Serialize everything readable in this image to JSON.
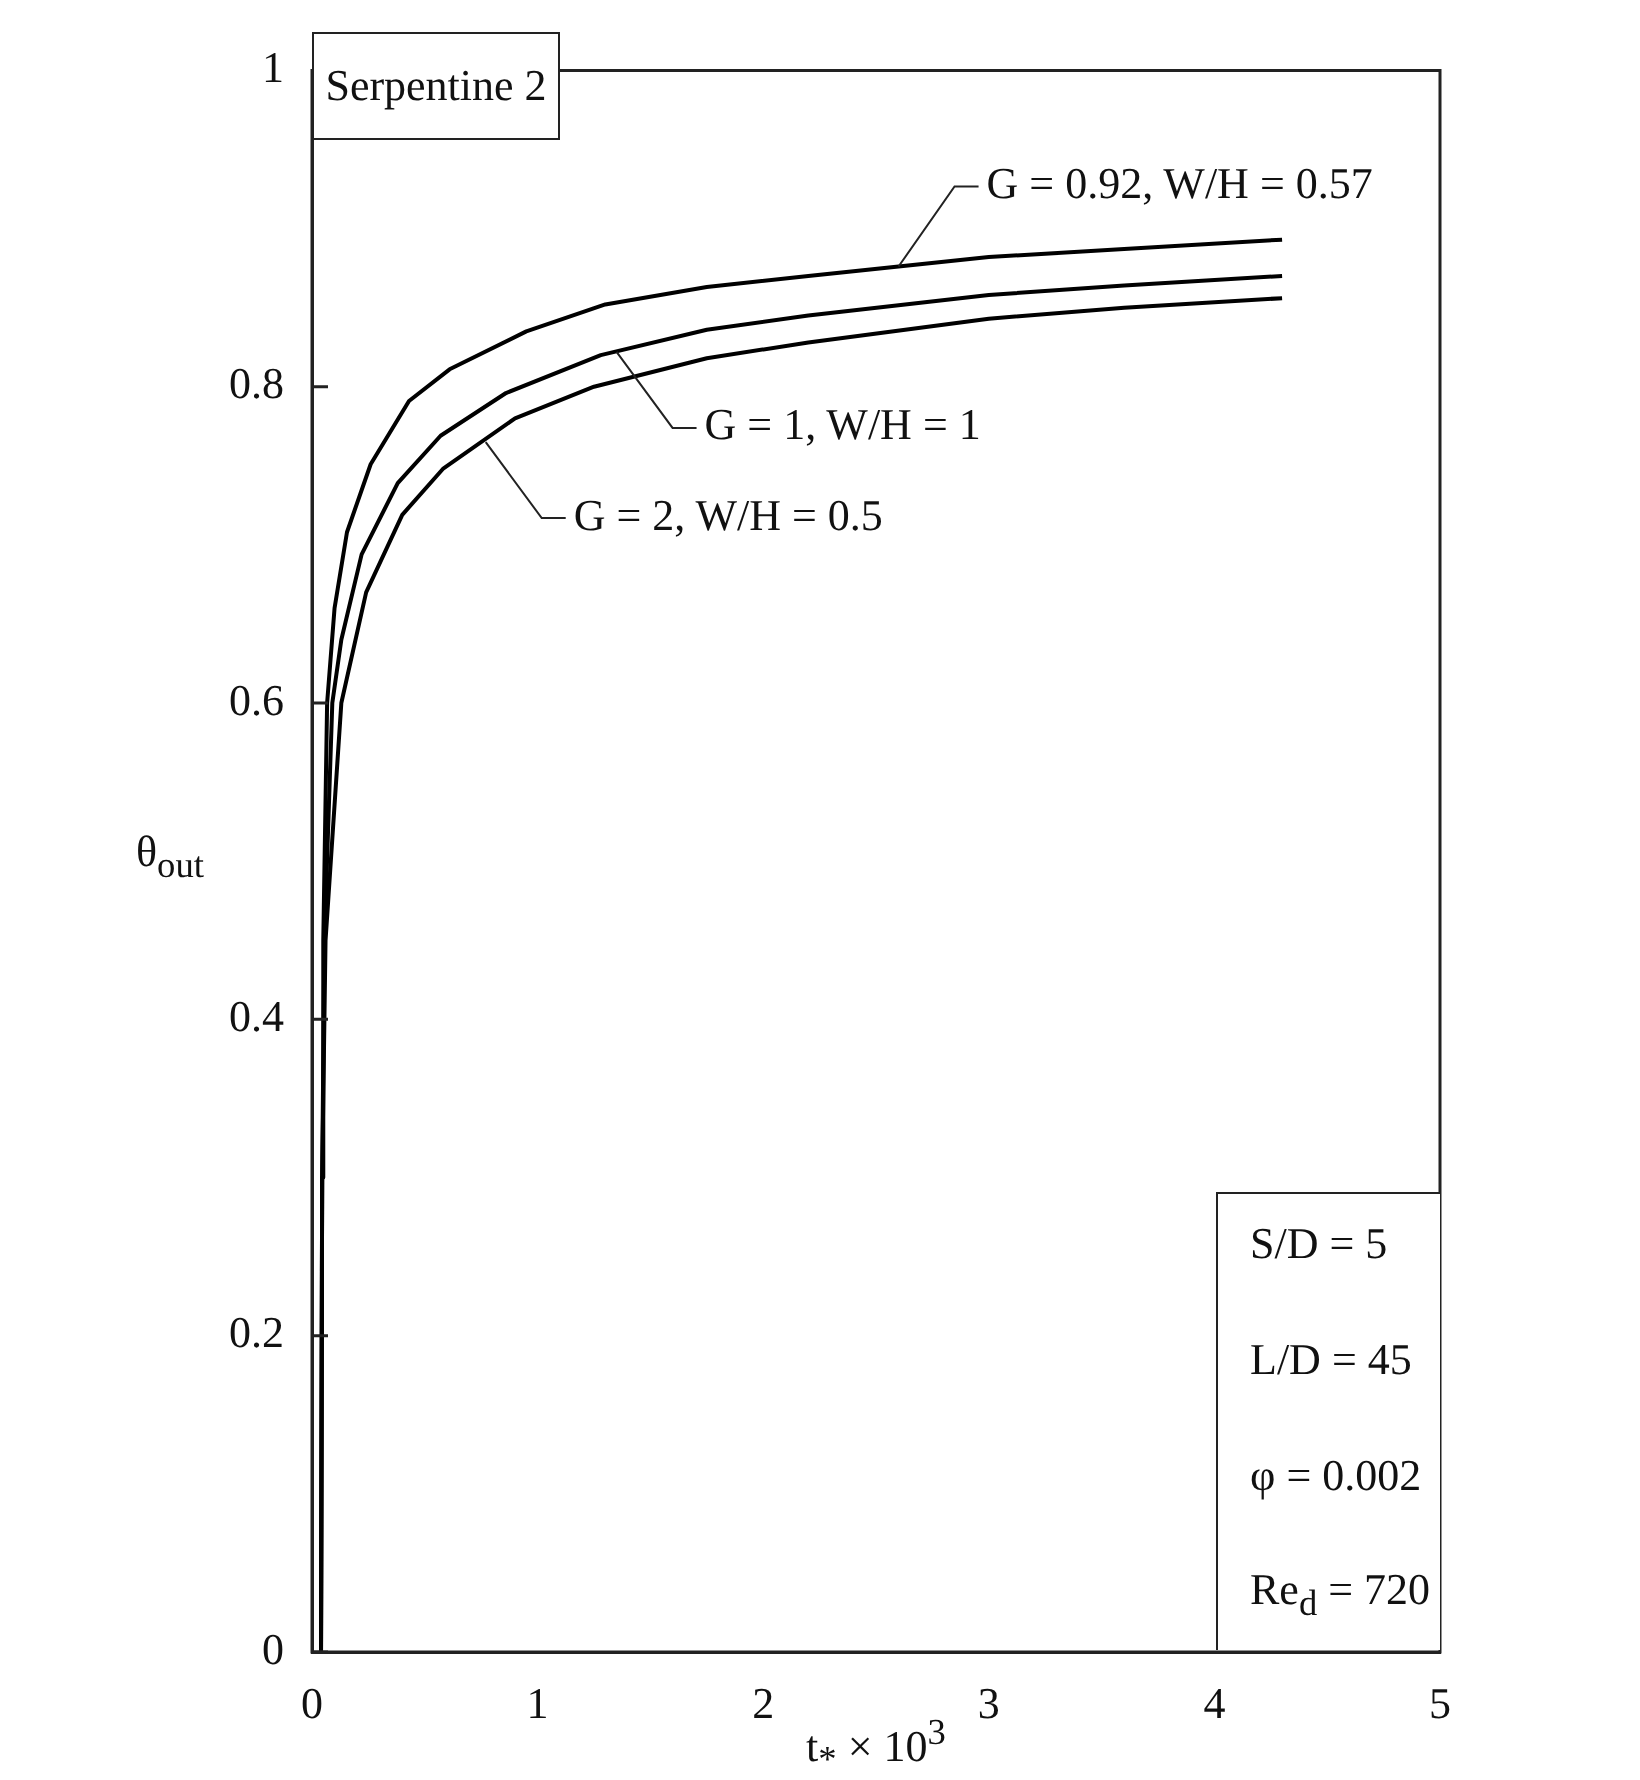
{
  "chart_data": {
    "type": "line",
    "title": "Serpentine 2",
    "xlabel": "t$_{*}$ × 10$^{3}$",
    "ylabel": "θ$_{out}$",
    "xlim": [
      0,
      5
    ],
    "xticks": [
      0,
      1,
      2,
      3,
      4,
      5
    ],
    "ylim": [
      0,
      1
    ],
    "yticks": [
      0,
      0.2,
      0.4,
      0.6,
      0.8,
      1
    ],
    "grid": false,
    "legend": false,
    "marker": "none",
    "line_style": "solid",
    "series": [
      {
        "color": "#000000",
        "x": [
          0.04,
          0.045,
          0.05,
          0.067,
          0.1,
          0.155,
          0.26,
          0.43,
          0.61,
          0.95,
          1.3,
          1.75,
          2.2,
          3.0,
          3.6,
          4.3
        ],
        "values": [
          0,
          0.3,
          0.45,
          0.6,
          0.66,
          0.708,
          0.751,
          0.791,
          0.811,
          0.835,
          0.852,
          0.863,
          0.87,
          0.882,
          0.887,
          0.893
        ]
      },
      {
        "color": "#000000",
        "x": [
          0.04,
          0.045,
          0.055,
          0.09,
          0.13,
          0.22,
          0.38,
          0.57,
          0.86,
          1.28,
          1.75,
          2.2,
          3.0,
          3.6,
          4.3
        ],
        "values": [
          0,
          0.3,
          0.45,
          0.6,
          0.64,
          0.694,
          0.739,
          0.769,
          0.796,
          0.82,
          0.836,
          0.845,
          0.858,
          0.864,
          0.87
        ]
      },
      {
        "color": "#000000",
        "x": [
          0.04,
          0.045,
          0.06,
          0.13,
          0.24,
          0.4,
          0.58,
          0.9,
          1.25,
          1.75,
          2.2,
          3.0,
          3.6,
          4.3
        ],
        "values": [
          0,
          0.3,
          0.45,
          0.6,
          0.67,
          0.719,
          0.748,
          0.78,
          0.8,
          0.818,
          0.828,
          0.843,
          0.85,
          0.856
        ]
      }
    ],
    "annotations": [
      {
        "text": "G = 0.92, W/H = 0.57",
        "x": 2.6,
        "y": 0.876
      },
      {
        "text": "G = 1, W/H = 1",
        "x": 1.35,
        "y": 0.822
      },
      {
        "text": "G = 2, W/H = 0.5",
        "x": 0.77,
        "y": 0.765
      },
      "S/D = 5",
      "L/D = 45",
      "φ = 0.002",
      "Re$_{d}$ = 720"
    ]
  }
}
